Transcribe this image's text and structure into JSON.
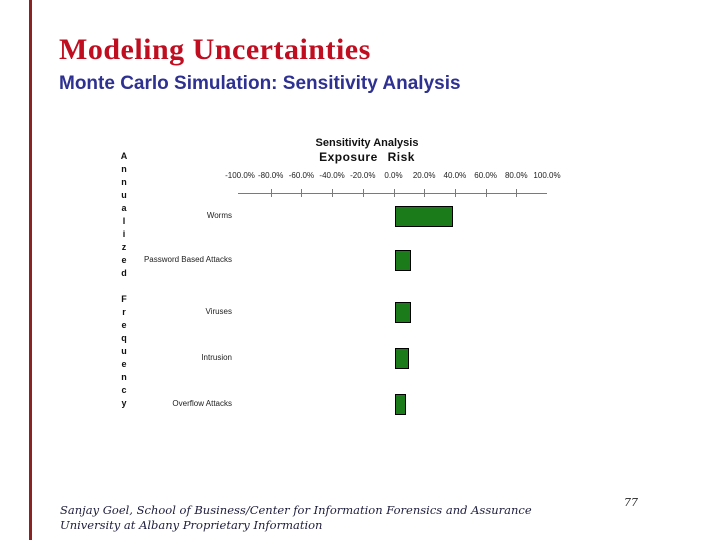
{
  "slide": {
    "title": "Modeling Uncertainties",
    "subtitle": "Monte Carlo Simulation: Sensitivity Analysis",
    "page_number": "77",
    "footer_line1": "Sanjay Goel, School of Business/Center for Information Forensics and Assurance",
    "footer_line2": "University at Albany Proprietary Information",
    "title_color": "#c00d20",
    "subtitle_color": "#2e3191",
    "accent_stripe_color": "#8a2222"
  },
  "chart_data": {
    "type": "bar",
    "orientation": "horizontal",
    "title": "Sensitivity Analysis",
    "subtitle": "Exposure  Risk",
    "y_axis_label": "Annualized Frequency",
    "categories": [
      "Worms",
      "Password Based Attacks",
      "Viruses",
      "Intrusion",
      "Overflow Attacks"
    ],
    "values": [
      37.5,
      10.5,
      10.0,
      9.0,
      7.0
    ],
    "unit": "%",
    "x_tick_labels": [
      "-100.0%",
      "-80.0%",
      "-60.0%",
      "-40.0%",
      "-20.0%",
      "0.0%",
      "20.0%",
      "40.0%",
      "60.0%",
      "80.0%",
      "100.0%"
    ],
    "xlim": [
      -100,
      100
    ],
    "bar_color": "#1b7b1b",
    "bar_border_color": "#000000",
    "grid": "off",
    "legend": "none"
  }
}
